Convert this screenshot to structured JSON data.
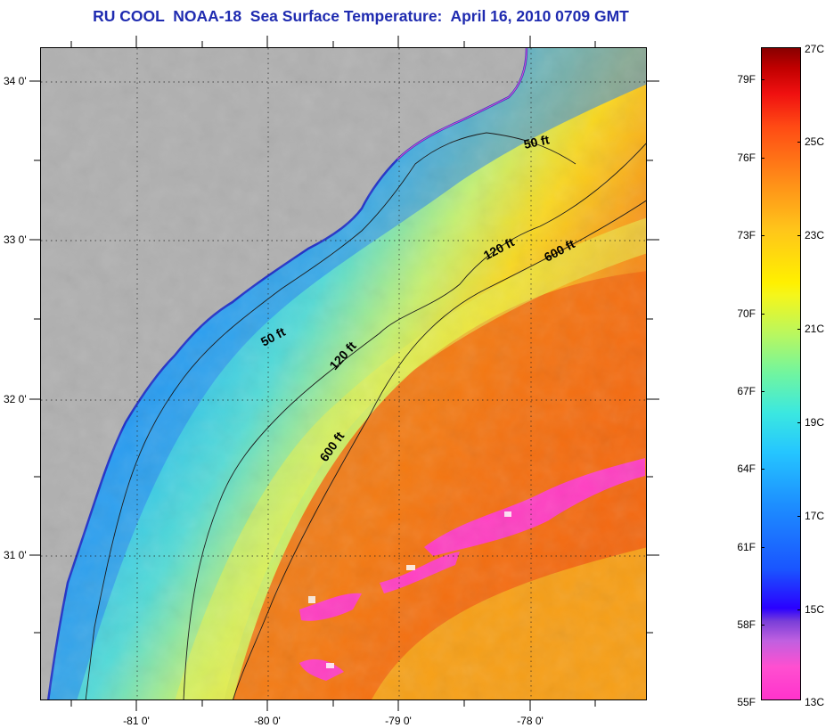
{
  "title": "RU COOL  NOAA-18  Sea Surface Temperature:  April 16, 2010 0709 GMT",
  "map": {
    "lat_labels": [
      "34 0'",
      "33 0'",
      "32 0'",
      "31 0'"
    ],
    "lon_labels": [
      "-81 0'",
      "-80 0'",
      "-79 0'",
      "-78 0'"
    ],
    "isobath_labels": [
      "50 ft",
      "50 ft",
      "120 ft",
      "120 ft",
      "600 ft",
      "600 ft"
    ],
    "colors": {
      "land": "#b0b0b0",
      "cold": "#1f6de6",
      "shelf": "#27c4f5",
      "mid": "#8de8a0",
      "warm": "#fbc21a",
      "gulfstream": "#f2680e",
      "cloud": "#ff3fc2"
    }
  },
  "colorbar": {
    "fahrenheit_labels": [
      "79F",
      "76F",
      "73F",
      "70F",
      "67F",
      "64F",
      "61F",
      "58F",
      "55F"
    ],
    "celsius_labels": [
      "27C",
      "25C",
      "23C",
      "21C",
      "19C",
      "17C",
      "15C",
      "13C"
    ]
  }
}
